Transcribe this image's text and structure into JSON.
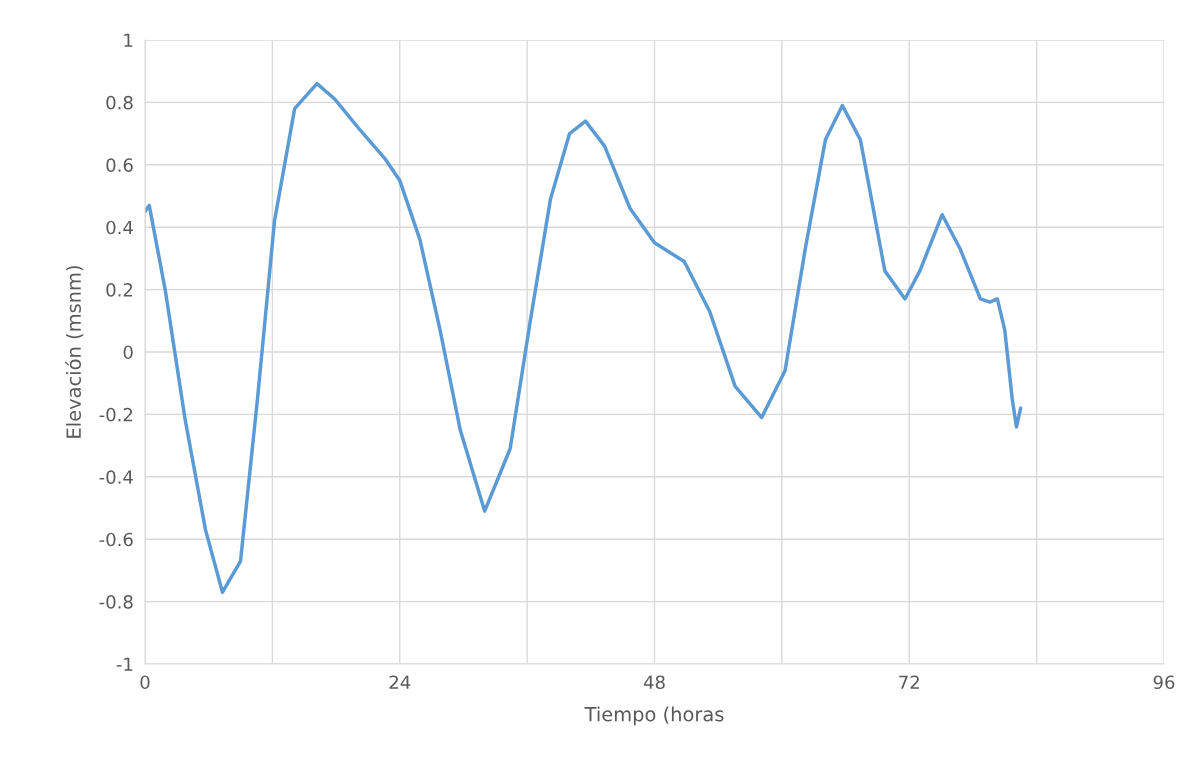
{
  "chart_data": {
    "type": "line",
    "xlabel": "Tiempo (horas",
    "ylabel": "Elevación (msnm)",
    "x": [
      0,
      0.4,
      1.9,
      3.8,
      5.7,
      7.3,
      9,
      10.6,
      12.2,
      14.1,
      16.2,
      17.9,
      20.3,
      22.6,
      24,
      25.9,
      27.8,
      29.7,
      32,
      34.4,
      36.3,
      38.2,
      40,
      41.5,
      43.3,
      45.7,
      48,
      50.8,
      53.2,
      55.6,
      58.1,
      60.3,
      62.2,
      64.1,
      65.7,
      67.4,
      69.7,
      71.6,
      73,
      75.1,
      76.8,
      78.7,
      79.6,
      80.3,
      81,
      81.7,
      82.1,
      82.5
    ],
    "series": [
      {
        "color": "#5b9bd5",
        "values": [
          0.45,
          0.47,
          0.2,
          -0.22,
          -0.57,
          -0.77,
          -0.67,
          -0.15,
          0.42,
          0.78,
          0.86,
          0.81,
          0.71,
          0.62,
          0.55,
          0.36,
          0.07,
          -0.25,
          -0.51,
          -0.31,
          0.1,
          0.49,
          0.7,
          0.74,
          0.66,
          0.46,
          0.35,
          0.29,
          0.13,
          -0.11,
          -0.21,
          -0.06,
          0.33,
          0.68,
          0.79,
          0.68,
          0.26,
          0.17,
          0.26,
          0.44,
          0.33,
          0.17,
          0.16,
          0.17,
          0.07,
          -0.15,
          -0.24,
          -0.18
        ]
      }
    ],
    "xlim": [
      0,
      96
    ],
    "xticks": [
      0,
      {
        "value": 12,
        "label": null
      },
      24,
      {
        "value": 36,
        "label": null
      },
      48,
      {
        "value": 60,
        "label": null
      },
      72,
      {
        "value": 84,
        "label": null
      },
      96
    ],
    "ylim": [
      -1,
      1
    ],
    "yticks": [
      -1,
      -0.8,
      -0.6,
      -0.4,
      -0.2,
      0,
      0.2,
      0.4,
      0.6,
      0.8,
      1
    ],
    "grid": true,
    "marker": "none",
    "line_style": "solid"
  }
}
